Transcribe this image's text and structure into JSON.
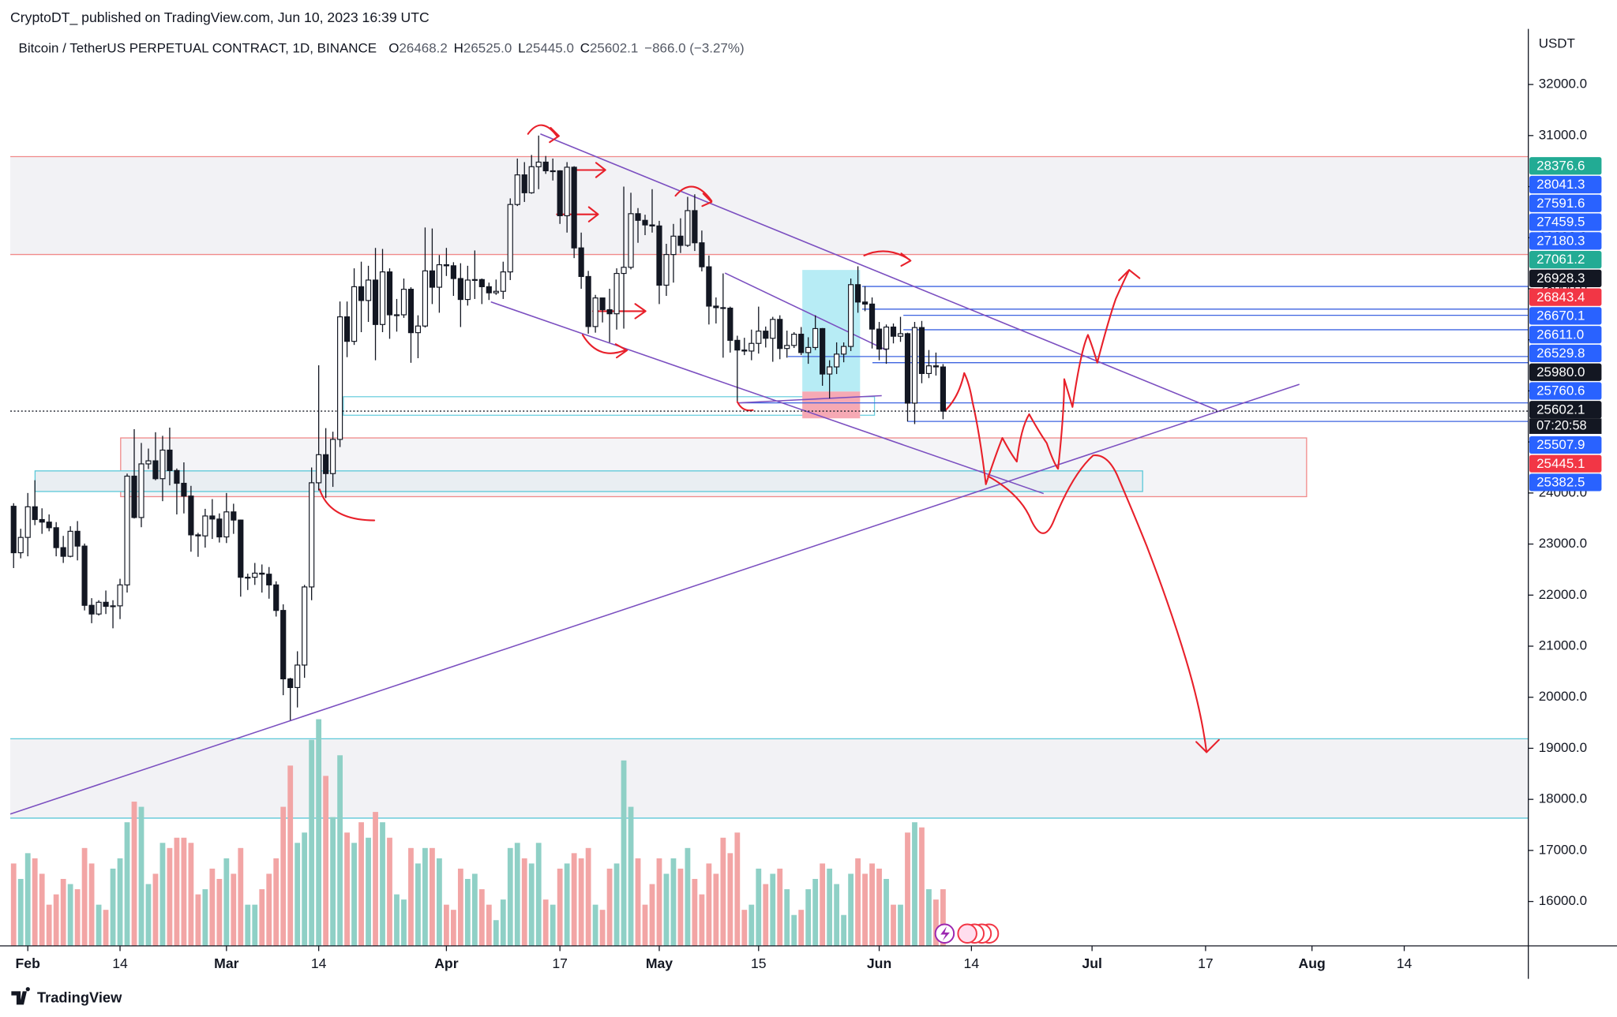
{
  "header": {
    "publisher": "CryptoDT_ published on TradingView.com, Jun 10, 2023 16:39 UTC"
  },
  "legend": {
    "symbol": "Bitcoin / TetherUS PERPETUAL CONTRACT, 1D, BINANCE",
    "items": [
      {
        "key": "O",
        "value": "26468.2"
      },
      {
        "key": "H",
        "value": "26525.0"
      },
      {
        "key": "L",
        "value": "25445.0"
      },
      {
        "key": "C",
        "value": "25602.1"
      }
    ],
    "change": "−866.0 (−3.27%)"
  },
  "footer": {
    "brand": "TradingView"
  },
  "chart_data": {
    "type": "candlestick",
    "start": "2023-01-30",
    "currency": "USDT",
    "countdown": "07:20:58",
    "up_color": "#ffffff",
    "down_color": "#131722",
    "volume_up_color": "#8fd0c6",
    "volume_down_color": "#f2a5a5",
    "ylim": [
      15130,
      33090
    ],
    "yticks": [
      {
        "value": 16000,
        "label": "16000.0"
      },
      {
        "value": 17000,
        "label": "17000.0"
      },
      {
        "value": 18000,
        "label": "18000.0"
      },
      {
        "value": 19000,
        "label": "19000.0"
      },
      {
        "value": 20000,
        "label": "20000.0"
      },
      {
        "value": 21000,
        "label": "21000.0"
      },
      {
        "value": 22000,
        "label": "22000.0"
      },
      {
        "value": 23000,
        "label": "23000.0"
      },
      {
        "value": 24000,
        "label": "24000.0"
      },
      {
        "value": 25000,
        "label": "25000.0"
      },
      {
        "value": 26000,
        "label": "26000.0"
      },
      {
        "value": 27000,
        "label": "27000.0"
      },
      {
        "value": 28000,
        "label": "28000.0"
      },
      {
        "value": 29000,
        "label": "29000.0"
      },
      {
        "value": 30000,
        "label": "30000.0"
      },
      {
        "value": 31000,
        "label": "31000.0"
      },
      {
        "value": 32000,
        "label": "32000.0"
      }
    ],
    "xticks": [
      {
        "value": "2023-02-01",
        "label": "Feb"
      },
      {
        "value": "2023-02-14",
        "label": "14"
      },
      {
        "value": "2023-03-01",
        "label": "Mar"
      },
      {
        "value": "2023-03-14",
        "label": "14"
      },
      {
        "value": "2023-04-01",
        "label": "Apr"
      },
      {
        "value": "2023-04-17",
        "label": "17"
      },
      {
        "value": "2023-05-01",
        "label": "May"
      },
      {
        "value": "2023-05-15",
        "label": "15"
      },
      {
        "value": "2023-06-01",
        "label": "Jun"
      },
      {
        "value": "2023-06-14",
        "label": "14"
      },
      {
        "value": "2023-07-01",
        "label": "Jul"
      },
      {
        "value": "2023-07-17",
        "label": "17"
      },
      {
        "value": "2023-08-01",
        "label": "Aug"
      },
      {
        "value": "2023-08-14",
        "label": "14"
      }
    ],
    "last_price": 25602.1,
    "price_labels": [
      {
        "value": 28376.6,
        "label": "28376.6",
        "color": "#22ab94"
      },
      {
        "value": 28041.3,
        "label": "28041.3",
        "color": "#2962ff"
      },
      {
        "value": 27591.6,
        "label": "27591.6",
        "color": "#2962ff"
      },
      {
        "value": 27459.5,
        "label": "27459.5",
        "color": "#2962ff"
      },
      {
        "value": 27180.3,
        "label": "27180.3",
        "color": "#2962ff"
      },
      {
        "value": 27061.2,
        "label": "27061.2",
        "color": "#22ab94"
      },
      {
        "value": 26928.3,
        "label": "26928.3",
        "color": "#131722"
      },
      {
        "value": 26843.4,
        "label": "26843.4",
        "color": "#f23645"
      },
      {
        "value": 26670.1,
        "label": "26670.1",
        "color": "#2962ff"
      },
      {
        "value": 26611.0,
        "label": "26611.0",
        "color": "#2962ff"
      },
      {
        "value": 26529.8,
        "label": "26529.8",
        "color": "#2962ff"
      },
      {
        "value": 25980.0,
        "label": "25980.0",
        "color": "#131722"
      },
      {
        "value": 25760.6,
        "label": "25760.6",
        "color": "#2962ff"
      },
      {
        "value": 25602.1,
        "label": "25602.1",
        "color": "#131722"
      },
      {
        "value": 25507.9,
        "label": "25507.9",
        "color": "#2962ff"
      },
      {
        "value": 25445.1,
        "label": "25445.1",
        "color": "#f23645"
      },
      {
        "value": 25382.5,
        "label": "25382.5",
        "color": "#2962ff"
      }
    ],
    "candles": [
      [
        23740,
        23800,
        22530,
        22830
      ],
      [
        22830,
        23300,
        22720,
        23130
      ],
      [
        23130,
        24000,
        22760,
        23730
      ],
      [
        23730,
        24250,
        23370,
        23480
      ],
      [
        23480,
        23700,
        23200,
        23430
      ],
      [
        23430,
        23580,
        23250,
        23320
      ],
      [
        23320,
        23430,
        22760,
        22930
      ],
      [
        22930,
        23160,
        22630,
        22760
      ],
      [
        22760,
        23350,
        22740,
        23250
      ],
      [
        23250,
        23450,
        22680,
        22960
      ],
      [
        22960,
        23010,
        21700,
        21800
      ],
      [
        21800,
        21940,
        21450,
        21630
      ],
      [
        21630,
        21900,
        21600,
        21860
      ],
      [
        21860,
        22090,
        21630,
        21780
      ],
      [
        21780,
        21900,
        21350,
        21790
      ],
      [
        21790,
        22320,
        21530,
        22200
      ],
      [
        22200,
        24380,
        22050,
        24330
      ],
      [
        24330,
        25250,
        23500,
        23520
      ],
      [
        23520,
        24980,
        23330,
        24570
      ],
      [
        24570,
        24870,
        24470,
        24630
      ],
      [
        24630,
        25190,
        24250,
        24280
      ],
      [
        24280,
        25120,
        23840,
        24840
      ],
      [
        24840,
        25280,
        24150,
        24440
      ],
      [
        24440,
        24480,
        23580,
        24190
      ],
      [
        24190,
        24600,
        23600,
        23940
      ],
      [
        23940,
        24140,
        22850,
        23180
      ],
      [
        23180,
        23220,
        22750,
        23160
      ],
      [
        23160,
        23690,
        22930,
        23550
      ],
      [
        23550,
        23880,
        23100,
        23490
      ],
      [
        23490,
        23600,
        23030,
        23140
      ],
      [
        23140,
        24000,
        23020,
        23630
      ],
      [
        23630,
        23790,
        23200,
        23470
      ],
      [
        23470,
        23480,
        21970,
        22350
      ],
      [
        22350,
        22420,
        22100,
        22350
      ],
      [
        22350,
        22630,
        22200,
        22430
      ],
      [
        22430,
        22600,
        22050,
        22410
      ],
      [
        22410,
        22550,
        21930,
        22200
      ],
      [
        22200,
        22270,
        21580,
        21700
      ],
      [
        21700,
        21820,
        20040,
        20360
      ],
      [
        20360,
        20380,
        19550,
        20190
      ],
      [
        20190,
        20900,
        19800,
        20630
      ],
      [
        20630,
        22200,
        20380,
        22160
      ],
      [
        22160,
        24500,
        21900,
        24200
      ],
      [
        24200,
        26500,
        24050,
        24750
      ],
      [
        24750,
        25270,
        23900,
        24380
      ],
      [
        24380,
        25200,
        24120,
        25050
      ],
      [
        25050,
        27750,
        24900,
        27450
      ],
      [
        27450,
        27750,
        26660,
        26970
      ],
      [
        26970,
        28400,
        26900,
        28040
      ],
      [
        28040,
        28530,
        27150,
        27770
      ],
      [
        27770,
        28450,
        27350,
        28170
      ],
      [
        28170,
        28800,
        26600,
        27300
      ],
      [
        27300,
        28780,
        27150,
        28330
      ],
      [
        28330,
        28400,
        27020,
        27490
      ],
      [
        27490,
        27800,
        27160,
        27490
      ],
      [
        27490,
        28200,
        27430,
        27990
      ],
      [
        27990,
        28030,
        26550,
        27140
      ],
      [
        27140,
        27480,
        26640,
        27270
      ],
      [
        27270,
        29200,
        27240,
        28350
      ],
      [
        28350,
        29180,
        27700,
        28030
      ],
      [
        28030,
        28660,
        27530,
        28470
      ],
      [
        28470,
        28800,
        28250,
        28450
      ],
      [
        28450,
        28520,
        27860,
        28200
      ],
      [
        28200,
        28500,
        27250,
        27790
      ],
      [
        27790,
        28450,
        27670,
        28170
      ],
      [
        28170,
        28750,
        27800,
        28180
      ],
      [
        28180,
        28200,
        27700,
        28040
      ],
      [
        28040,
        28120,
        27780,
        27920
      ],
      [
        27920,
        28180,
        27880,
        27950
      ],
      [
        27950,
        28530,
        27800,
        28330
      ],
      [
        28330,
        29770,
        28170,
        29650
      ],
      [
        29650,
        30550,
        29620,
        30230
      ],
      [
        30230,
        30480,
        29700,
        29880
      ],
      [
        29880,
        30620,
        29860,
        30390
      ],
      [
        30390,
        31000,
        29950,
        30480
      ],
      [
        30480,
        30600,
        30250,
        30310
      ],
      [
        30310,
        30550,
        30120,
        30310
      ],
      [
        30310,
        30320,
        29270,
        29430
      ],
      [
        29430,
        30480,
        29100,
        30380
      ],
      [
        30380,
        30400,
        28600,
        28800
      ],
      [
        28800,
        29100,
        28000,
        28240
      ],
      [
        28240,
        28350,
        27120,
        27260
      ],
      [
        27260,
        27880,
        27140,
        27820
      ],
      [
        27820,
        27820,
        27340,
        27590
      ],
      [
        27590,
        28000,
        26950,
        27510
      ],
      [
        27510,
        28400,
        27200,
        28300
      ],
      [
        28300,
        30000,
        27220,
        28420
      ],
      [
        28420,
        29880,
        28380,
        29470
      ],
      [
        29470,
        29580,
        28900,
        29340
      ],
      [
        29340,
        29450,
        29050,
        29250
      ],
      [
        29250,
        29950,
        29100,
        29230
      ],
      [
        29230,
        29330,
        27700,
        28070
      ],
      [
        28070,
        28880,
        27860,
        28670
      ],
      [
        28670,
        29270,
        28120,
        29030
      ],
      [
        29030,
        29380,
        28700,
        28850
      ],
      [
        28850,
        29800,
        28820,
        29530
      ],
      [
        29530,
        29850,
        28740,
        28900
      ],
      [
        28900,
        29140,
        28340,
        28430
      ],
      [
        28430,
        28650,
        27300,
        27660
      ],
      [
        27660,
        27830,
        27320,
        27630
      ],
      [
        27630,
        28300,
        26650,
        27620
      ],
      [
        27620,
        27650,
        26750,
        26990
      ],
      [
        26990,
        27080,
        25800,
        26800
      ],
      [
        26800,
        27040,
        26700,
        26780
      ],
      [
        26780,
        27200,
        26600,
        26930
      ],
      [
        26930,
        27650,
        26730,
        27170
      ],
      [
        27170,
        27260,
        26850,
        27030
      ],
      [
        27030,
        27450,
        26570,
        27400
      ],
      [
        27400,
        27480,
        26620,
        26830
      ],
      [
        26830,
        27180,
        26650,
        26890
      ],
      [
        26890,
        27150,
        26840,
        27110
      ],
      [
        27110,
        27250,
        26700,
        26750
      ],
      [
        26750,
        27050,
        26530,
        26850
      ],
      [
        26850,
        27480,
        26800,
        27220
      ],
      [
        27220,
        27230,
        26100,
        26330
      ],
      [
        26330,
        26600,
        25850,
        26470
      ],
      [
        26470,
        26950,
        26330,
        26720
      ],
      [
        26720,
        26950,
        26560,
        26870
      ],
      [
        26870,
        28200,
        26780,
        28080
      ],
      [
        28080,
        28440,
        27530,
        27740
      ],
      [
        27740,
        28050,
        27560,
        27700
      ],
      [
        27700,
        27830,
        26830,
        27210
      ],
      [
        27210,
        27350,
        26600,
        26820
      ],
      [
        26820,
        27300,
        26530,
        27250
      ],
      [
        27250,
        27320,
        26930,
        27070
      ],
      [
        27070,
        27450,
        26960,
        27120
      ],
      [
        27120,
        27140,
        25400,
        25760
      ],
      [
        25760,
        27350,
        25350,
        27240
      ],
      [
        27240,
        27370,
        26150,
        26340
      ],
      [
        26340,
        26800,
        26250,
        26490
      ],
      [
        26490,
        26750,
        26300,
        26470
      ],
      [
        26468.2,
        26525.0,
        25445.0,
        25602.1
      ]
    ],
    "volume": [
      80,
      65,
      90,
      85,
      70,
      40,
      50,
      65,
      60,
      55,
      95,
      80,
      40,
      35,
      75,
      85,
      120,
      140,
      135,
      60,
      70,
      100,
      95,
      105,
      105,
      100,
      50,
      55,
      75,
      65,
      85,
      70,
      95,
      40,
      40,
      55,
      70,
      85,
      135,
      175,
      100,
      110,
      200,
      220,
      165,
      125,
      185,
      110,
      100,
      120,
      105,
      130,
      120,
      105,
      50,
      45,
      95,
      80,
      95,
      95,
      85,
      40,
      35,
      75,
      65,
      70,
      55,
      40,
      25,
      45,
      95,
      100,
      85,
      80,
      100,
      45,
      40,
      75,
      80,
      90,
      85,
      95,
      40,
      35,
      75,
      80,
      180,
      135,
      85,
      40,
      60,
      85,
      70,
      85,
      75,
      95,
      65,
      50,
      80,
      70,
      105,
      90,
      110,
      35,
      40,
      75,
      60,
      70,
      75,
      55,
      30,
      35,
      55,
      65,
      80,
      75,
      60,
      30,
      70,
      85,
      70,
      80,
      75,
      65,
      40,
      40,
      110,
      120,
      115,
      55,
      45,
      55
    ]
  }
}
